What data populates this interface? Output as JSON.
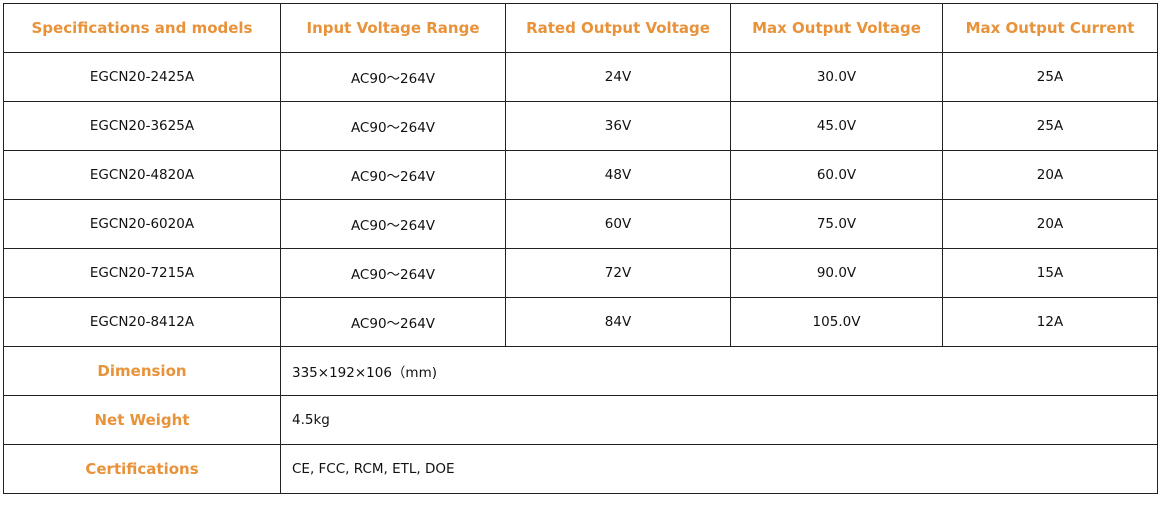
{
  "table": {
    "header": [
      "Specifications and models",
      "Input Voltage Range",
      "Rated Output Voltage",
      "Max Output Voltage",
      "Max Output Current"
    ],
    "rows": [
      [
        "EGCN20-2425A",
        "AC90～264V",
        "24V",
        "30.0V",
        "25A"
      ],
      [
        "EGCN20-3625A",
        "AC90～264V",
        "36V",
        "45.0V",
        "25A"
      ],
      [
        "EGCN20-4820A",
        "AC90～264V",
        "48V",
        "60.0V",
        "20A"
      ],
      [
        "EGCN20-6020A",
        "AC90～264V",
        "60V",
        "75.0V",
        "20A"
      ],
      [
        "EGCN20-7215A",
        "AC90～264V",
        "72V",
        "90.0V",
        "15A"
      ],
      [
        "EGCN20-8412A",
        "AC90～264V",
        "84V",
        "105.0V",
        "12A"
      ]
    ],
    "specs": [
      {
        "label": "Dimension",
        "value": "335×192×106（mm)"
      },
      {
        "label": "Net Weight",
        "value": "4.5kg"
      },
      {
        "label": "Certifications",
        "value": "CE, FCC, RCM, ETL, DOE"
      }
    ]
  }
}
